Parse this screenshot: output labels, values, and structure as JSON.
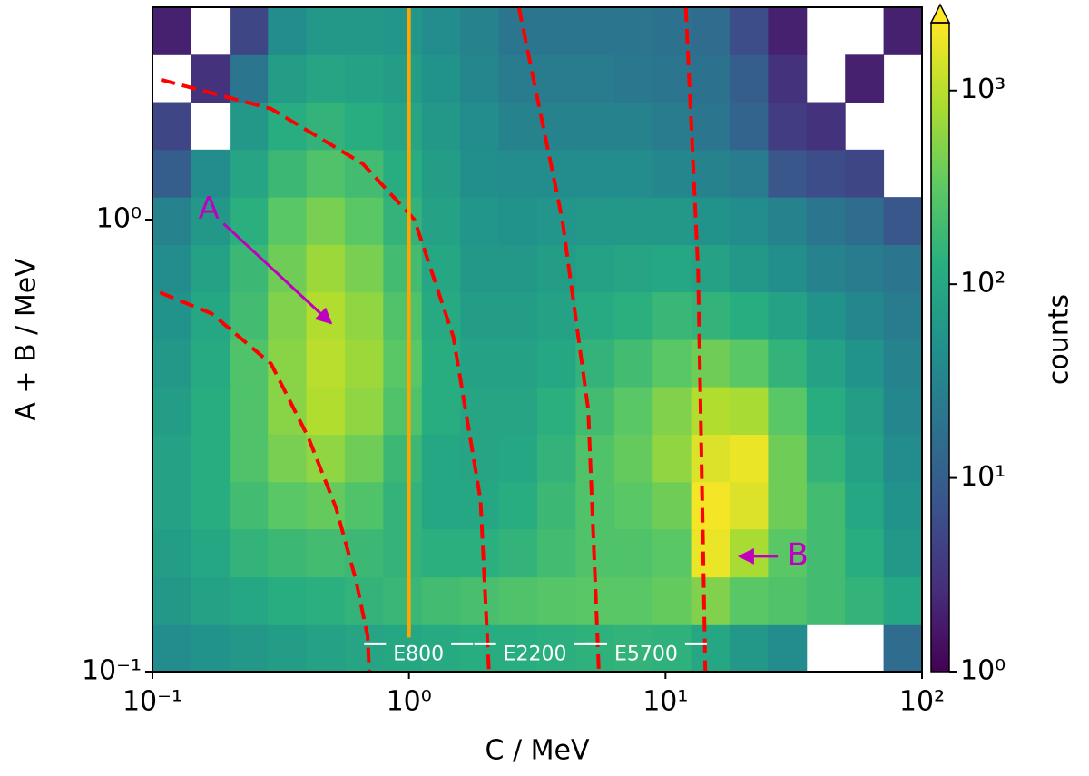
{
  "chart_data": {
    "type": "heatmap",
    "log_x": true,
    "log_y": true,
    "colormap": "viridis",
    "xlabel": "C / MeV",
    "ylabel": "A + B / MeV",
    "xlim": [
      0.1,
      100
    ],
    "ylim": [
      0.1,
      2.951
    ],
    "xticks": [
      {
        "value": 0.1,
        "label": "10⁻¹"
      },
      {
        "value": 1,
        "label": "10⁰"
      },
      {
        "value": 10,
        "label": "10¹"
      },
      {
        "value": 100,
        "label": "10²"
      }
    ],
    "yticks": [
      {
        "value": 0.1,
        "label": "10⁻¹"
      },
      {
        "value": 1,
        "label": "10⁰"
      }
    ],
    "x_bins": [
      0.1,
      0.141,
      0.2,
      0.282,
      0.398,
      0.562,
      0.794,
      1.122,
      1.585,
      2.239,
      3.162,
      4.467,
      6.31,
      8.913,
      12.59,
      17.78,
      25.12,
      35.48,
      50.12,
      70.79,
      100
    ],
    "y_bins": [
      0.1,
      0.127,
      0.162,
      0.207,
      0.263,
      0.335,
      0.427,
      0.543,
      0.692,
      0.881,
      1.122,
      1.429,
      1.82,
      2.317,
      2.951
    ],
    "counts": [
      [
        40,
        50,
        60,
        70,
        80,
        90,
        100,
        110,
        120,
        120,
        130,
        140,
        150,
        140,
        100,
        60,
        40,
        null,
        null,
        15
      ],
      [
        60,
        80,
        100,
        120,
        130,
        150,
        170,
        200,
        220,
        250,
        280,
        300,
        300,
        350,
        500,
        300,
        250,
        200,
        150,
        100
      ],
      [
        70,
        100,
        150,
        180,
        200,
        180,
        150,
        130,
        130,
        150,
        200,
        250,
        250,
        300,
        1800,
        800,
        300,
        200,
        120,
        60
      ],
      [
        80,
        120,
        200,
        300,
        350,
        250,
        150,
        100,
        100,
        120,
        180,
        250,
        300,
        400,
        2000,
        1500,
        400,
        200,
        100,
        50
      ],
      [
        80,
        120,
        250,
        450,
        600,
        400,
        180,
        100,
        90,
        100,
        150,
        250,
        350,
        600,
        1500,
        1800,
        400,
        150,
        80,
        40
      ],
      [
        70,
        120,
        250,
        550,
        900,
        600,
        250,
        120,
        90,
        90,
        130,
        200,
        300,
        500,
        900,
        800,
        300,
        120,
        70,
        35
      ],
      [
        60,
        110,
        250,
        550,
        1000,
        700,
        300,
        120,
        80,
        80,
        100,
        150,
        200,
        300,
        400,
        300,
        150,
        80,
        50,
        30
      ],
      [
        50,
        100,
        200,
        500,
        900,
        600,
        250,
        110,
        70,
        70,
        80,
        110,
        130,
        170,
        150,
        120,
        80,
        50,
        35,
        25
      ],
      [
        40,
        80,
        180,
        400,
        700,
        450,
        200,
        100,
        60,
        60,
        70,
        80,
        90,
        100,
        80,
        60,
        45,
        30,
        25,
        20
      ],
      [
        30,
        60,
        130,
        300,
        450,
        300,
        150,
        80,
        55,
        50,
        55,
        60,
        60,
        60,
        50,
        40,
        30,
        20,
        15,
        8
      ],
      [
        10,
        40,
        90,
        180,
        250,
        200,
        120,
        70,
        45,
        40,
        40,
        40,
        40,
        35,
        30,
        25,
        8,
        6,
        5,
        null
      ],
      [
        5,
        null,
        60,
        120,
        150,
        120,
        90,
        60,
        40,
        30,
        30,
        30,
        30,
        25,
        20,
        12,
        4,
        3,
        null,
        null
      ],
      [
        null,
        3,
        20,
        70,
        90,
        80,
        70,
        50,
        35,
        25,
        25,
        25,
        22,
        20,
        18,
        10,
        3,
        null,
        2,
        null
      ],
      [
        2,
        null,
        5,
        40,
        60,
        60,
        55,
        40,
        30,
        20,
        20,
        20,
        20,
        18,
        15,
        6,
        2,
        null,
        null,
        2
      ]
    ],
    "colorbar": {
      "label": "counts",
      "clim": [
        1,
        2240
      ],
      "extend": "max",
      "ticks": [
        {
          "value": 1,
          "label": "10⁰"
        },
        {
          "value": 10,
          "label": "10¹"
        },
        {
          "value": 100,
          "label": "10²"
        },
        {
          "value": 1000,
          "label": "10³"
        }
      ]
    },
    "lines": [
      {
        "color": "#ff0000",
        "dashed": true,
        "x": [
          0.107,
          0.17,
          0.29,
          0.405,
          0.52,
          0.62,
          0.69,
          0.7
        ],
        "y": [
          0.69,
          0.62,
          0.48,
          0.33,
          0.23,
          0.16,
          0.12,
          0.1
        ]
      },
      {
        "color": "#ff0000",
        "dashed": true,
        "x": [
          0.108,
          0.29,
          0.66,
          1.05,
          1.49,
          1.9,
          2.05
        ],
        "y": [
          2.04,
          1.76,
          1.33,
          1.0,
          0.55,
          0.24,
          0.1
        ]
      },
      {
        "color": "#ff0000",
        "dashed": true,
        "x": [
          2.68,
          3.96,
          5.0,
          5.5
        ],
        "y": [
          2.951,
          1.0,
          0.38,
          0.1
        ]
      },
      {
        "color": "#ff0000",
        "dashed": true,
        "x": [
          12.0,
          13.4,
          14.3
        ],
        "y": [
          2.951,
          0.77,
          0.1
        ]
      },
      {
        "color": "#ffa500",
        "dashed": false,
        "x": [
          1,
          1
        ],
        "y": [
          0.119,
          2.951
        ]
      }
    ],
    "region_labels": [
      {
        "text": "E800",
        "x": 1.09,
        "y": 0.109
      },
      {
        "text": "E2200",
        "x": 3.1,
        "y": 0.109
      },
      {
        "text": "E5700",
        "x": 8.4,
        "y": 0.109
      }
    ],
    "annotations": [
      {
        "text": "A",
        "color": "#bf00bf",
        "xytext": [
          0.166,
          1.05
        ],
        "xy": [
          0.497,
          0.59
        ]
      },
      {
        "text": "B",
        "color": "#bf00bf",
        "xytext": [
          32.8,
          0.18
        ],
        "xy": [
          19.4,
          0.18
        ]
      }
    ]
  }
}
